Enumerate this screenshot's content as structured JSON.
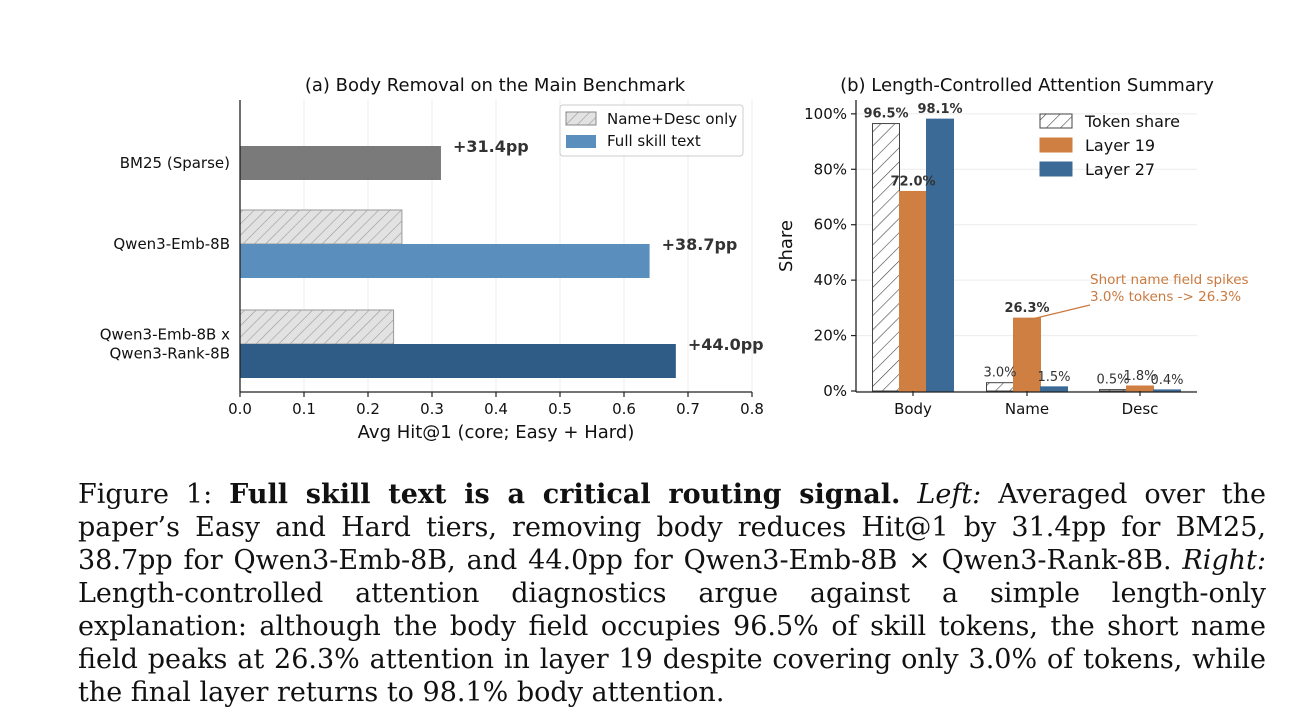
{
  "chart_data": [
    {
      "type": "bar",
      "orientation": "horizontal",
      "title": "(a) Body Removal on the Main Benchmark",
      "xlabel": "Avg Hit@1 (core; Easy + Hard)",
      "ylabel": "",
      "xlim": [
        0.0,
        0.8
      ],
      "xticks": [
        "0.0",
        "0.1",
        "0.2",
        "0.3",
        "0.4",
        "0.5",
        "0.6",
        "0.7",
        "0.8"
      ],
      "grid": "vertical",
      "legend_position": "top-right",
      "legend": [
        {
          "label": "Name+Desc only",
          "style": "hatched",
          "color": "#e0e0e0"
        },
        {
          "label": "Full skill text",
          "style": "solid",
          "color": "#5a8fbd"
        }
      ],
      "categories": [
        "BM25 (Sparse)",
        "Qwen3-Emb-8B",
        "Qwen3-Emb-8B x\nQwen3-Rank-8B"
      ],
      "series": [
        {
          "name": "Name+Desc only",
          "values": [
            null,
            0.253,
            0.24
          ],
          "hatched": true
        },
        {
          "name": "Full skill text",
          "values": [
            0.314,
            0.64,
            0.681
          ],
          "colors": [
            "#7a7a7a",
            "#5a8fbd",
            "#2e5c87"
          ]
        }
      ],
      "annotations": [
        "+31.4pp",
        "+38.7pp",
        "+44.0pp"
      ]
    },
    {
      "type": "bar",
      "title": "(b) Length-Controlled Attention Summary",
      "xlabel": "",
      "ylabel": "Share",
      "ylim": [
        0,
        1.05
      ],
      "yticks": [
        "0%",
        "20%",
        "40%",
        "60%",
        "80%",
        "100%"
      ],
      "grid": "horizontal",
      "legend_position": "top-right",
      "categories": [
        "Body",
        "Name",
        "Desc"
      ],
      "series": [
        {
          "name": "Token share",
          "values": [
            0.965,
            0.03,
            0.005
          ],
          "labels": [
            "96.5%",
            "3.0%",
            "0.5%"
          ],
          "style": "hatched",
          "color": "#ffffff"
        },
        {
          "name": "Layer 19",
          "values": [
            0.72,
            0.263,
            0.018
          ],
          "labels": [
            "72.0%",
            "26.3%",
            "1.8%"
          ],
          "color": "#cf7f42"
        },
        {
          "name": "Layer 27",
          "values": [
            0.981,
            0.015,
            0.004
          ],
          "labels": [
            "98.1%",
            "1.5%",
            "0.4%"
          ],
          "color": "#3b6a97"
        }
      ],
      "annotation": {
        "line1": "Short name field spikes",
        "line2": "3.0% tokens -> 26.3%",
        "color": "#c97a3f"
      }
    }
  ],
  "caption": {
    "figure_label": "Figure 1:",
    "bold": "Full skill text is a critical routing signal.",
    "left_label": "Left:",
    "left_text": "Averaged over the paper’s Easy and Hard tiers, removing body reduces Hit@1 by 31.4pp for BM25, 38.7pp for Qwen3-Emb-8B, and 44.0pp for Qwen3-Emb-8B × Qwen3-Rank-8B.",
    "right_label": "Right:",
    "right_text": "Length-controlled attention diagnostics argue against a simple length-only explanation: although the body field occupies 96.5% of skill tokens, the short name field peaks at 26.3% attention in layer 19 despite covering only 3.0% of tokens, while the final layer returns to 98.1% body attention."
  }
}
